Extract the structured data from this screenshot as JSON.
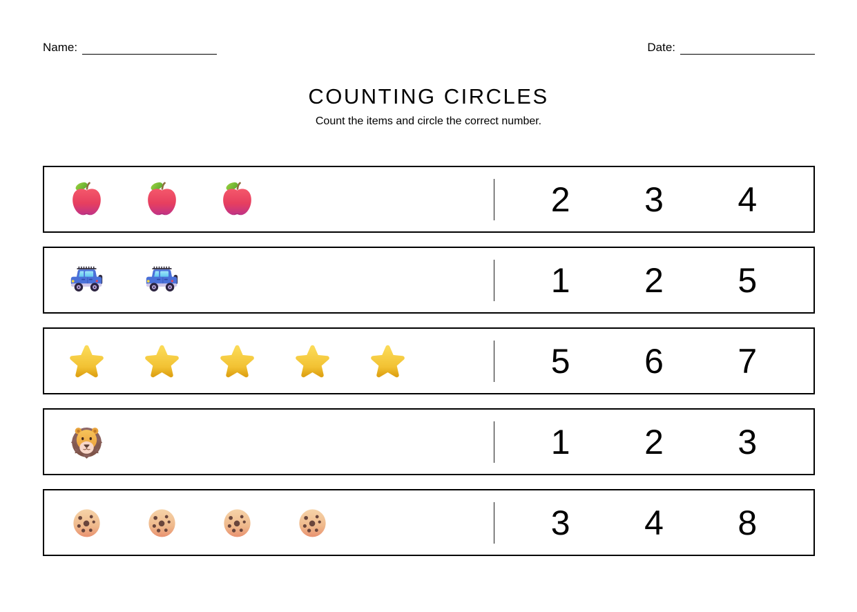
{
  "header": {
    "name_label": "Name:",
    "date_label": "Date:"
  },
  "titleblock": {
    "title": "COUNTING CIRCLES",
    "subtitle": "Count the items and circle the correct number."
  },
  "icons": {
    "apple-emoji": "🍎",
    "car-emoji": "🚙",
    "star-emoji": "⭐",
    "lion-emoji": "🦁",
    "cookie-emoji": "🍪"
  },
  "colors": {
    "text": "#000000",
    "border": "#000000",
    "divider": "#1a1a1a"
  },
  "rows": [
    {
      "item": "apple",
      "icon": "apple-emoji",
      "count": 3,
      "choices": [
        "2",
        "3",
        "4"
      ]
    },
    {
      "item": "car",
      "icon": "car-emoji",
      "count": 2,
      "choices": [
        "1",
        "2",
        "5"
      ]
    },
    {
      "item": "star",
      "icon": "star-emoji",
      "count": 5,
      "choices": [
        "5",
        "6",
        "7"
      ]
    },
    {
      "item": "lion",
      "icon": "lion-emoji",
      "count": 1,
      "choices": [
        "1",
        "2",
        "3"
      ]
    },
    {
      "item": "cookie",
      "icon": "cookie-emoji",
      "count": 4,
      "choices": [
        "3",
        "4",
        "8"
      ]
    }
  ]
}
